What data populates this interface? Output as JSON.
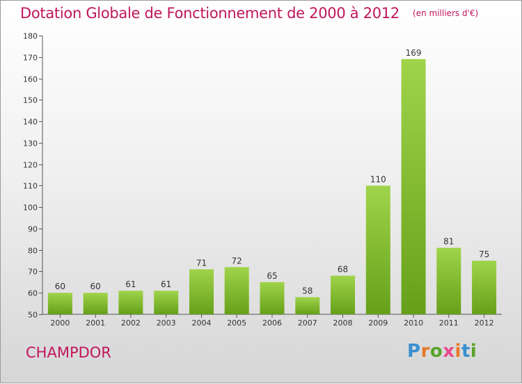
{
  "chart_data": {
    "type": "bar",
    "title": "Dotation Globale de Fonctionnement de 2000 à 2012",
    "unit": "(en milliers d'€)",
    "categories": [
      "2000",
      "2001",
      "2002",
      "2003",
      "2004",
      "2005",
      "2006",
      "2007",
      "2008",
      "2009",
      "2010",
      "2011",
      "2012"
    ],
    "values": [
      60,
      60,
      61,
      61,
      71,
      72,
      65,
      58,
      68,
      110,
      169,
      81,
      75
    ],
    "ylim": [
      50,
      180
    ],
    "yticks": [
      50,
      60,
      70,
      80,
      90,
      100,
      110,
      120,
      130,
      140,
      150,
      160,
      170,
      180
    ],
    "grid": false,
    "bar_color_top": "#9fd44a",
    "bar_color_bottom": "#66a01a"
  },
  "commune": "CHAMPDOR",
  "logo": {
    "letters": [
      "P",
      "r",
      "o",
      "x",
      "i",
      "t",
      "i"
    ],
    "colors": [
      "#3a8fd0",
      "#e8792a",
      "#5aa32c",
      "#e84a8c",
      "#e8792a",
      "#3a8fd0",
      "#5aa32c"
    ]
  },
  "colors": {
    "title": "#c0165b"
  }
}
